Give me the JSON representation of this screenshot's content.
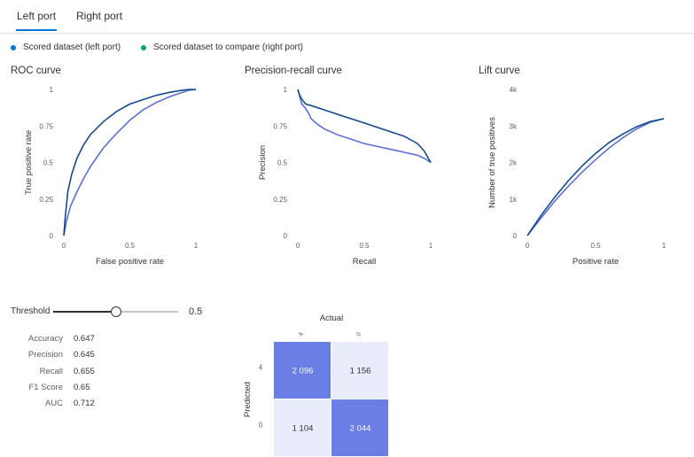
{
  "tabs": [
    {
      "label": "Left port",
      "active": true
    },
    {
      "label": "Right port",
      "active": false
    }
  ],
  "legend": [
    {
      "label": "Scored dataset (left port)",
      "color": "#0078d4"
    },
    {
      "label": "Scored dataset to compare (right port)",
      "color": "#00a67e"
    }
  ],
  "colors": {
    "left_series": "#134a8a",
    "right_series": "#5b6fd6",
    "cm_high": "#6b7ee6",
    "cm_low": "#e8ecfb"
  },
  "chart_data": [
    {
      "type": "line",
      "title": "ROC curve",
      "xlabel": "False positive rate",
      "ylabel": "True positive rate",
      "xlim": [
        0,
        1
      ],
      "ylim": [
        0,
        1
      ],
      "xticks": [
        0,
        0.5,
        1
      ],
      "xtick_labels": [
        "0",
        "0.5",
        "1"
      ],
      "yticks": [
        0,
        0.25,
        0.5,
        0.75,
        1
      ],
      "ytick_labels": [
        "0",
        "0.25",
        "0.5",
        "0.75",
        "1"
      ],
      "series": [
        {
          "x": [
            0,
            0.01,
            0.03,
            0.06,
            0.1,
            0.15,
            0.2,
            0.3,
            0.4,
            0.5,
            0.6,
            0.7,
            0.8,
            0.9,
            0.95,
            1
          ],
          "y": [
            0,
            0.12,
            0.3,
            0.42,
            0.53,
            0.62,
            0.69,
            0.78,
            0.85,
            0.9,
            0.93,
            0.96,
            0.98,
            0.995,
            1,
            1
          ]
        },
        {
          "x": [
            0,
            0.02,
            0.05,
            0.1,
            0.15,
            0.2,
            0.3,
            0.4,
            0.5,
            0.6,
            0.7,
            0.8,
            0.9,
            0.95,
            1
          ],
          "y": [
            0,
            0.1,
            0.2,
            0.3,
            0.39,
            0.47,
            0.6,
            0.7,
            0.79,
            0.86,
            0.91,
            0.95,
            0.98,
            0.995,
            1
          ]
        }
      ]
    },
    {
      "type": "line",
      "title": "Precision-recall curve",
      "xlabel": "Recall",
      "ylabel": "Precision",
      "xlim": [
        0,
        1
      ],
      "ylim": [
        0,
        1
      ],
      "xticks": [
        0,
        0.5,
        1
      ],
      "xtick_labels": [
        "0",
        "0.5",
        "1"
      ],
      "yticks": [
        0,
        0.25,
        0.5,
        0.75,
        1
      ],
      "ytick_labels": [
        "0",
        "0.25",
        "0.5",
        "0.75",
        "1"
      ],
      "series": [
        {
          "x": [
            0,
            0.01,
            0.02,
            0.04,
            0.06,
            0.1,
            0.2,
            0.3,
            0.4,
            0.5,
            0.6,
            0.7,
            0.8,
            0.9,
            0.95,
            1
          ],
          "y": [
            1,
            0.97,
            0.95,
            0.92,
            0.9,
            0.89,
            0.86,
            0.83,
            0.8,
            0.77,
            0.74,
            0.71,
            0.68,
            0.63,
            0.58,
            0.5
          ]
        },
        {
          "x": [
            0,
            0.01,
            0.02,
            0.03,
            0.05,
            0.08,
            0.1,
            0.15,
            0.2,
            0.3,
            0.4,
            0.5,
            0.6,
            0.7,
            0.8,
            0.9,
            0.95,
            1
          ],
          "y": [
            1,
            0.97,
            0.93,
            0.9,
            0.88,
            0.84,
            0.8,
            0.76,
            0.73,
            0.69,
            0.66,
            0.63,
            0.61,
            0.59,
            0.57,
            0.55,
            0.53,
            0.5
          ]
        }
      ]
    },
    {
      "type": "line",
      "title": "Lift curve",
      "xlabel": "Positive rate",
      "ylabel": "Number of true positives",
      "xlim": [
        0,
        1
      ],
      "ylim": [
        0,
        4000
      ],
      "xticks": [
        0,
        0.5,
        1
      ],
      "xtick_labels": [
        "0",
        "0.5",
        "1"
      ],
      "yticks": [
        0,
        1000,
        2000,
        3000,
        4000
      ],
      "ytick_labels": [
        "0",
        "1k",
        "2k",
        "3k",
        "4k"
      ],
      "series": [
        {
          "x": [
            0,
            0.1,
            0.2,
            0.3,
            0.4,
            0.5,
            0.6,
            0.7,
            0.8,
            0.9,
            1
          ],
          "y": [
            0,
            550,
            1050,
            1500,
            1900,
            2250,
            2550,
            2780,
            2980,
            3120,
            3200
          ]
        },
        {
          "x": [
            0,
            0.1,
            0.2,
            0.3,
            0.4,
            0.5,
            0.6,
            0.7,
            0.8,
            0.9,
            1
          ],
          "y": [
            0,
            480,
            940,
            1350,
            1730,
            2080,
            2400,
            2680,
            2920,
            3100,
            3200
          ]
        }
      ]
    },
    {
      "type": "heatmap",
      "title": "Actual",
      "xlabel": "Actual",
      "ylabel": "Predicted",
      "col_labels": [
        "4",
        "0"
      ],
      "row_labels": [
        "4",
        "0"
      ],
      "cells": [
        [
          "2 096",
          "1 156"
        ],
        [
          "1 104",
          "2 044"
        ]
      ],
      "values": [
        [
          2096,
          1156
        ],
        [
          1104,
          2044
        ]
      ]
    }
  ],
  "threshold": {
    "label": "Threshold",
    "value": 0.5,
    "value_text": "0.5"
  },
  "metrics": [
    {
      "name": "Accuracy",
      "value": "0.647"
    },
    {
      "name": "Precision",
      "value": "0.645"
    },
    {
      "name": "Recall",
      "value": "0.655"
    },
    {
      "name": "F1 Score",
      "value": "0.65"
    },
    {
      "name": "AUC",
      "value": "0.712"
    }
  ]
}
